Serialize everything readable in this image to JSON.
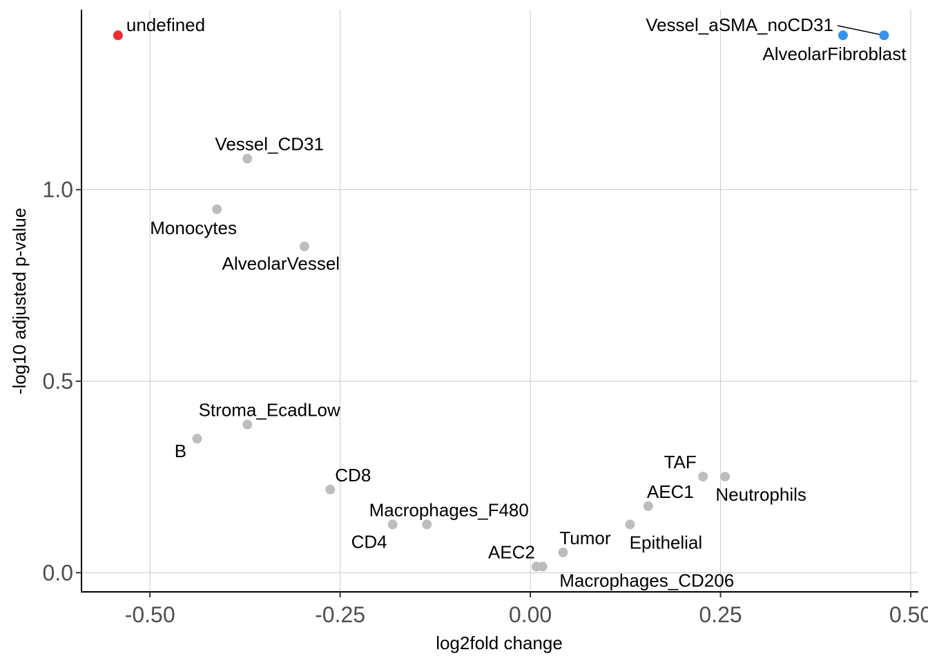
{
  "chart_data": {
    "type": "scatter",
    "xlabel": "log2fold change",
    "ylabel": "-log10 adjusted p-value",
    "xlim": [
      -0.59,
      0.51
    ],
    "ylim": [
      -0.05,
      1.47
    ],
    "x_ticks": [
      -0.5,
      -0.25,
      0.0,
      0.25,
      0.5
    ],
    "x_tick_labels": [
      "-0.50",
      "-0.25",
      "0.00",
      "0.25",
      "0.50"
    ],
    "y_ticks": [
      0.0,
      0.5,
      1.0
    ],
    "y_tick_labels": [
      "0.0",
      "0.5",
      "1.0"
    ],
    "grid": true,
    "legend": "none",
    "colors": {
      "down": "#e8312f",
      "up": "#3792ea",
      "ns": "#bdbdbd"
    },
    "points": [
      {
        "label": "undefined",
        "x": -0.542,
        "y": 1.403,
        "group": "down"
      },
      {
        "label": "Vessel_aSMA_noCD31",
        "x": 0.411,
        "y": 1.403,
        "group": "up"
      },
      {
        "label": "AlveolarFibroblast",
        "x": 0.465,
        "y": 1.403,
        "group": "up"
      },
      {
        "label": "Vessel_CD31",
        "x": -0.372,
        "y": 1.081,
        "group": "ns"
      },
      {
        "label": "Monocytes",
        "x": -0.412,
        "y": 0.949,
        "group": "ns"
      },
      {
        "label": "AlveolarVessel",
        "x": -0.297,
        "y": 0.852,
        "group": "ns"
      },
      {
        "label": "Stroma_EcadLow",
        "x": -0.372,
        "y": 0.387,
        "group": "ns"
      },
      {
        "label": "B",
        "x": -0.438,
        "y": 0.35,
        "group": "ns"
      },
      {
        "label": "CD8",
        "x": -0.263,
        "y": 0.217,
        "group": "ns"
      },
      {
        "label": "Macrophages_F480",
        "x": -0.136,
        "y": 0.126,
        "group": "ns"
      },
      {
        "label": "CD4",
        "x": -0.181,
        "y": 0.126,
        "group": "ns"
      },
      {
        "label": "AEC2",
        "x": 0.008,
        "y": 0.016,
        "group": "ns"
      },
      {
        "label": "Macrophages_CD206",
        "x": 0.016,
        "y": 0.016,
        "group": "ns"
      },
      {
        "label": "Tumor",
        "x": 0.043,
        "y": 0.053,
        "group": "ns"
      },
      {
        "label": "Epithelial",
        "x": 0.131,
        "y": 0.126,
        "group": "ns"
      },
      {
        "label": "AEC1",
        "x": 0.155,
        "y": 0.174,
        "group": "ns"
      },
      {
        "label": "TAF",
        "x": 0.227,
        "y": 0.251,
        "group": "ns"
      },
      {
        "label": "Neutrophils",
        "x": 0.256,
        "y": 0.251,
        "group": "ns"
      }
    ]
  }
}
